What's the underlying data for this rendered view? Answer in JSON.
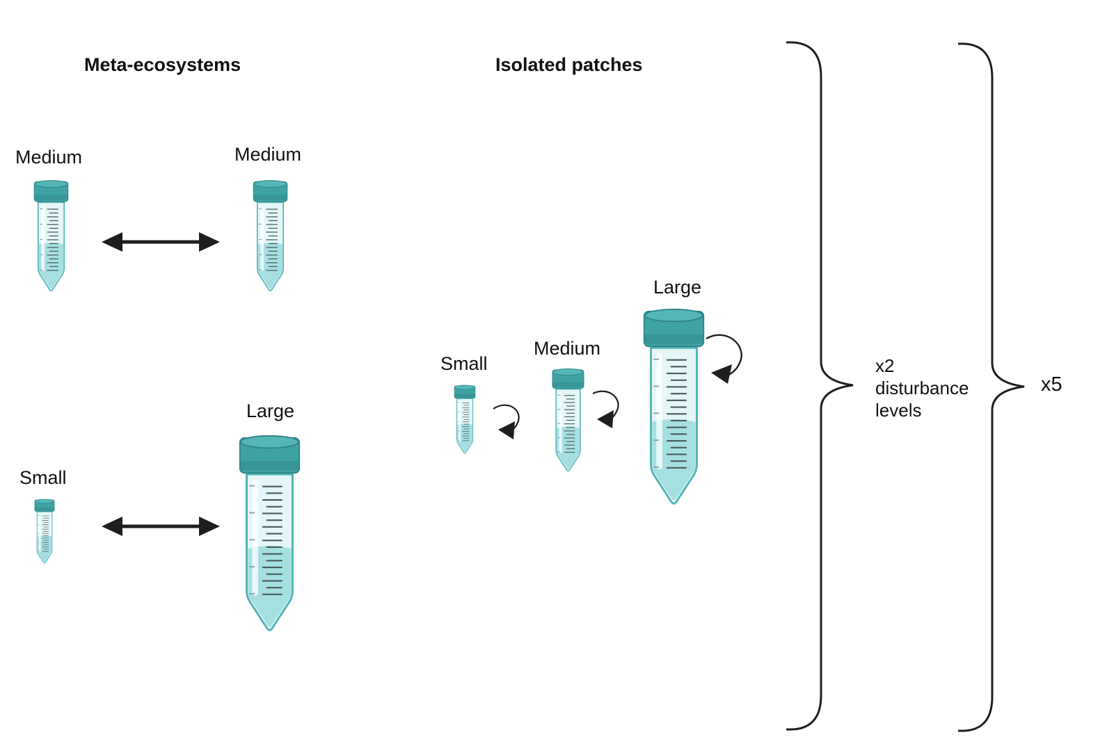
{
  "headings": {
    "meta_ecosystems": "Meta-ecosystems",
    "isolated_patches": "Isolated patches"
  },
  "meta": {
    "pair1": {
      "left": "Medium",
      "right": "Medium"
    },
    "pair2": {
      "left": "Small",
      "right": "Large"
    }
  },
  "isolated": {
    "small": "Small",
    "medium": "Medium",
    "large": "Large"
  },
  "brace_inner": {
    "multiplier": "x2",
    "line2": "disturbance",
    "line3": "levels"
  },
  "brace_outer": {
    "multiplier": "x5"
  },
  "colors": {
    "cap": "#3fa3a6",
    "cap_dark": "#2e8689",
    "tube_glass": "#e4f6f7",
    "tube_outline": "#4fb3b5",
    "liquid": "#a6dfe2",
    "arrow": "#1e1e1e"
  }
}
